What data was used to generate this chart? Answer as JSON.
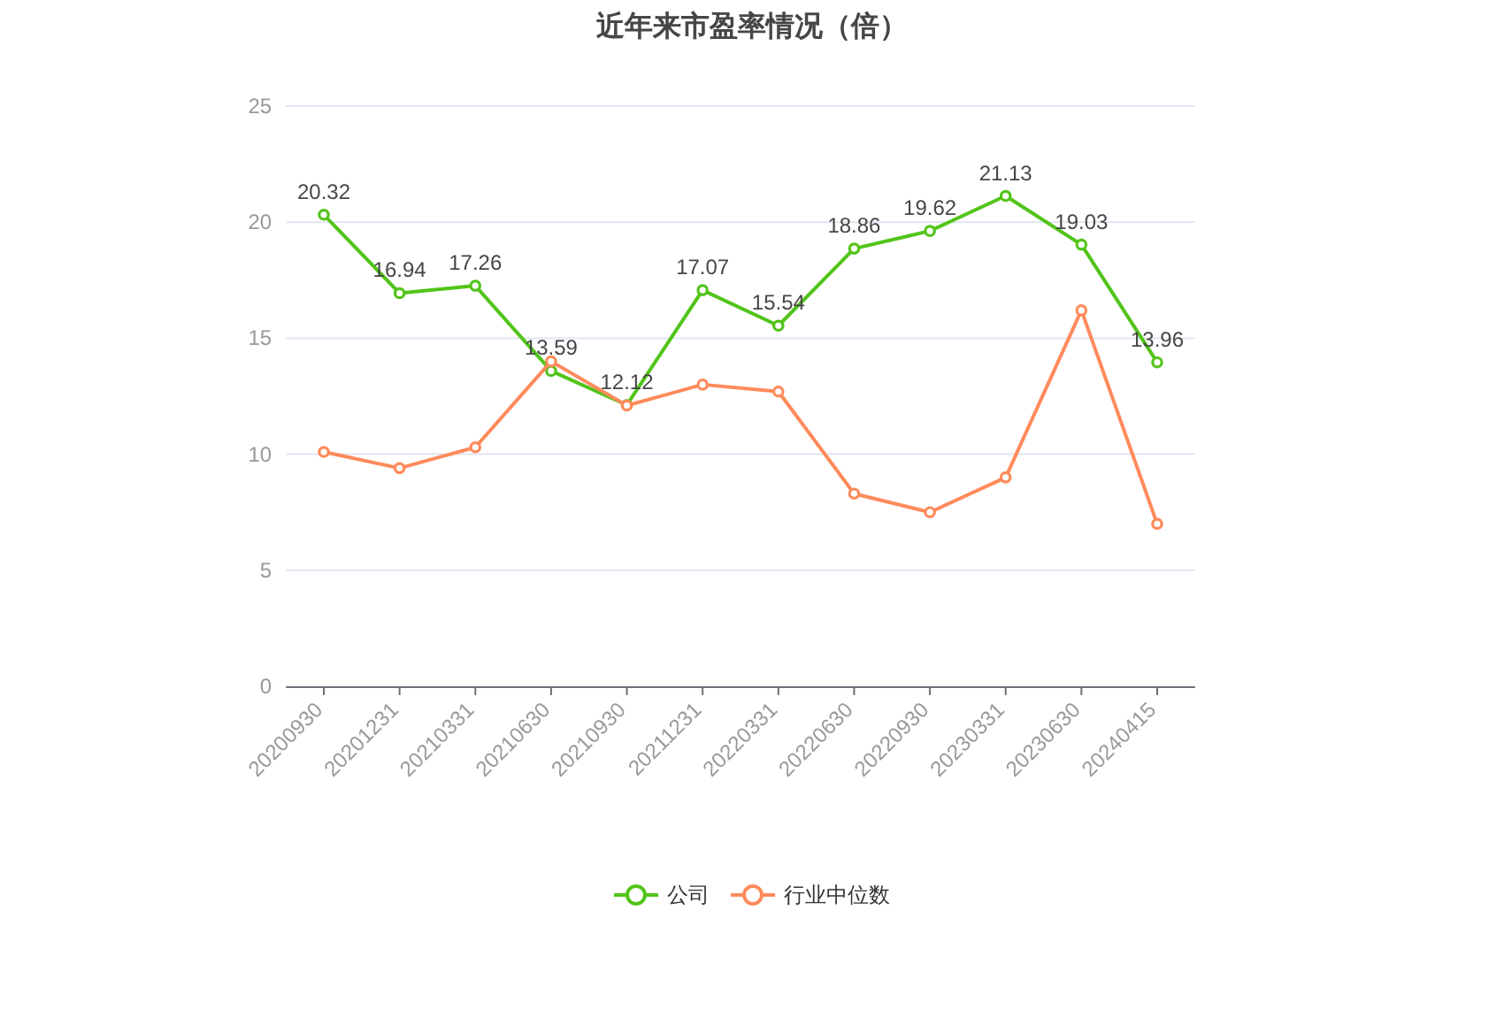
{
  "chart_data": {
    "type": "line",
    "title": "近年来市盈率情况（倍）",
    "categories": [
      "20200930",
      "20201231",
      "20210331",
      "20210630",
      "20210930",
      "20211231",
      "20220331",
      "20220630",
      "20220930",
      "20230331",
      "20230630",
      "20240415"
    ],
    "series": [
      {
        "name": "公司",
        "color": "#52c41a",
        "values": [
          20.32,
          16.94,
          17.26,
          13.59,
          12.12,
          17.07,
          15.54,
          18.86,
          19.62,
          21.13,
          19.03,
          13.96
        ],
        "value_labels": [
          "20.32",
          "16.94",
          "17.26",
          "13.59",
          "12.12",
          "17.07",
          "15.54",
          "18.86",
          "19.62",
          "21.13",
          "19.03",
          "13.96"
        ]
      },
      {
        "name": "行业中位数",
        "color": "#ff8a5b",
        "values": [
          10.1,
          9.4,
          10.3,
          14.0,
          12.1,
          13.0,
          12.7,
          8.3,
          7.5,
          9.0,
          16.2,
          7.0
        ]
      }
    ],
    "ylim": [
      0,
      25
    ],
    "yticks": [
      0,
      5,
      10,
      15,
      20,
      25
    ],
    "grid": "y",
    "legend": "bottom",
    "marker": "circle",
    "line_style": "solid"
  }
}
